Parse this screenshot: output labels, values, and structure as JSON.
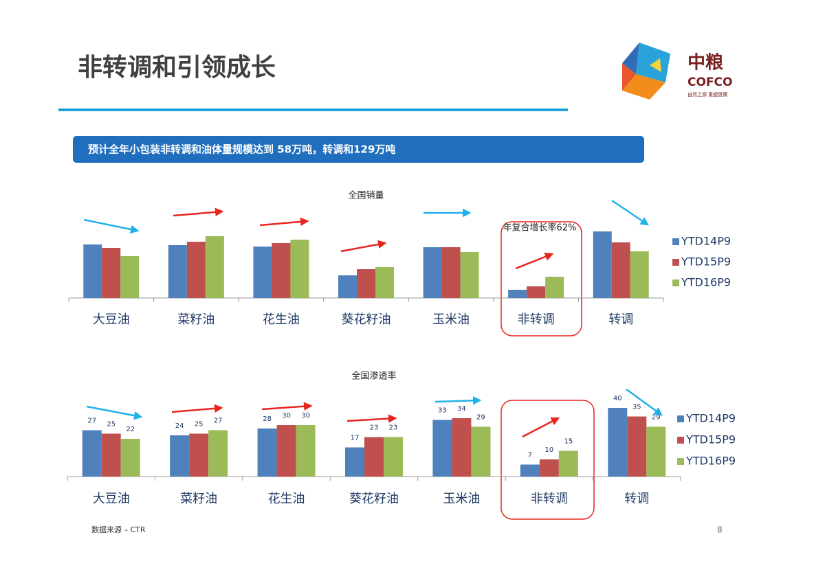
{
  "header": {
    "title": "非转调和引领成长",
    "logo": {
      "name": "中粮",
      "brand": "COFCO",
      "slogan": "自然之源 重塑健康"
    }
  },
  "banner": "预计全年小包装非转调和油体量规模达到 58万吨，转调和129万吨",
  "chart_data": [
    {
      "type": "bar",
      "title": "全国销量",
      "categories": [
        "大豆油",
        "菜籽油",
        "花生油",
        "葵花籽油",
        "玉米油",
        "非转调",
        "转调"
      ],
      "series": [
        {
          "name": "YTD14P9",
          "color": "#4f81bd",
          "values": [
            78,
            77,
            75,
            33,
            74,
            12,
            97
          ]
        },
        {
          "name": "YTD15P9",
          "color": "#c0504d",
          "values": [
            73,
            82,
            80,
            42,
            74,
            17,
            81
          ]
        },
        {
          "name": "YTD16P9",
          "color": "#9bbb59",
          "values": [
            61,
            90,
            85,
            45,
            67,
            31,
            68
          ]
        }
      ],
      "annotations": [
        "年复合增长率62%"
      ],
      "legend": "right",
      "data_labels": false
    },
    {
      "type": "bar",
      "title": "全国渗透率",
      "categories": [
        "大豆油",
        "菜籽油",
        "花生油",
        "葵花籽油",
        "玉米油",
        "非转调",
        "转调"
      ],
      "series": [
        {
          "name": "YTD14P9",
          "color": "#4f81bd",
          "values": [
            27,
            24,
            28,
            17,
            33,
            7,
            40
          ]
        },
        {
          "name": "YTD15P9",
          "color": "#c0504d",
          "values": [
            25,
            25,
            30,
            23,
            34,
            10,
            35
          ]
        },
        {
          "name": "YTD16P9",
          "color": "#9bbb59",
          "values": [
            22,
            27,
            30,
            23,
            29,
            15,
            29
          ]
        }
      ],
      "legend": "right",
      "data_labels": true
    }
  ],
  "footer": {
    "source": "数据来源 – CTR",
    "page": "8"
  }
}
